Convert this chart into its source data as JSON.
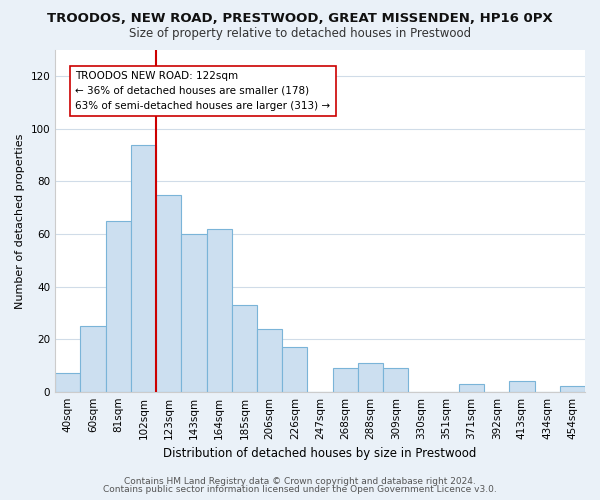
{
  "title": "TROODOS, NEW ROAD, PRESTWOOD, GREAT MISSENDEN, HP16 0PX",
  "subtitle": "Size of property relative to detached houses in Prestwood",
  "xlabel": "Distribution of detached houses by size in Prestwood",
  "ylabel": "Number of detached properties",
  "categories": [
    "40sqm",
    "60sqm",
    "81sqm",
    "102sqm",
    "123sqm",
    "143sqm",
    "164sqm",
    "185sqm",
    "206sqm",
    "226sqm",
    "247sqm",
    "268sqm",
    "288sqm",
    "309sqm",
    "330sqm",
    "351sqm",
    "371sqm",
    "392sqm",
    "413sqm",
    "434sqm",
    "454sqm"
  ],
  "values": [
    7,
    25,
    65,
    94,
    75,
    60,
    62,
    33,
    24,
    17,
    0,
    9,
    11,
    9,
    0,
    0,
    3,
    0,
    4,
    0,
    2
  ],
  "bar_color": "#ccdff0",
  "bar_edge_color": "#7ab4d8",
  "highlight_index": 4,
  "highlight_line_color": "#cc0000",
  "annotation_line1": "TROODOS NEW ROAD: 122sqm",
  "annotation_line2": "← 36% of detached houses are smaller (178)",
  "annotation_line3": "63% of semi-detached houses are larger (313) →",
  "annotation_box_color": "#ffffff",
  "annotation_box_edge": "#cc0000",
  "ylim": [
    0,
    130
  ],
  "yticks": [
    0,
    20,
    40,
    60,
    80,
    100,
    120
  ],
  "footer1": "Contains HM Land Registry data © Crown copyright and database right 2024.",
  "footer2": "Contains public sector information licensed under the Open Government Licence v3.0.",
  "background_color": "#eaf1f8",
  "plot_background": "#ffffff",
  "grid_color": "#d0dce8",
  "title_fontsize": 9.5,
  "subtitle_fontsize": 8.5,
  "ylabel_fontsize": 8,
  "xlabel_fontsize": 8.5,
  "tick_fontsize": 7.5,
  "annotation_fontsize": 7.5,
  "footer_fontsize": 6.5
}
